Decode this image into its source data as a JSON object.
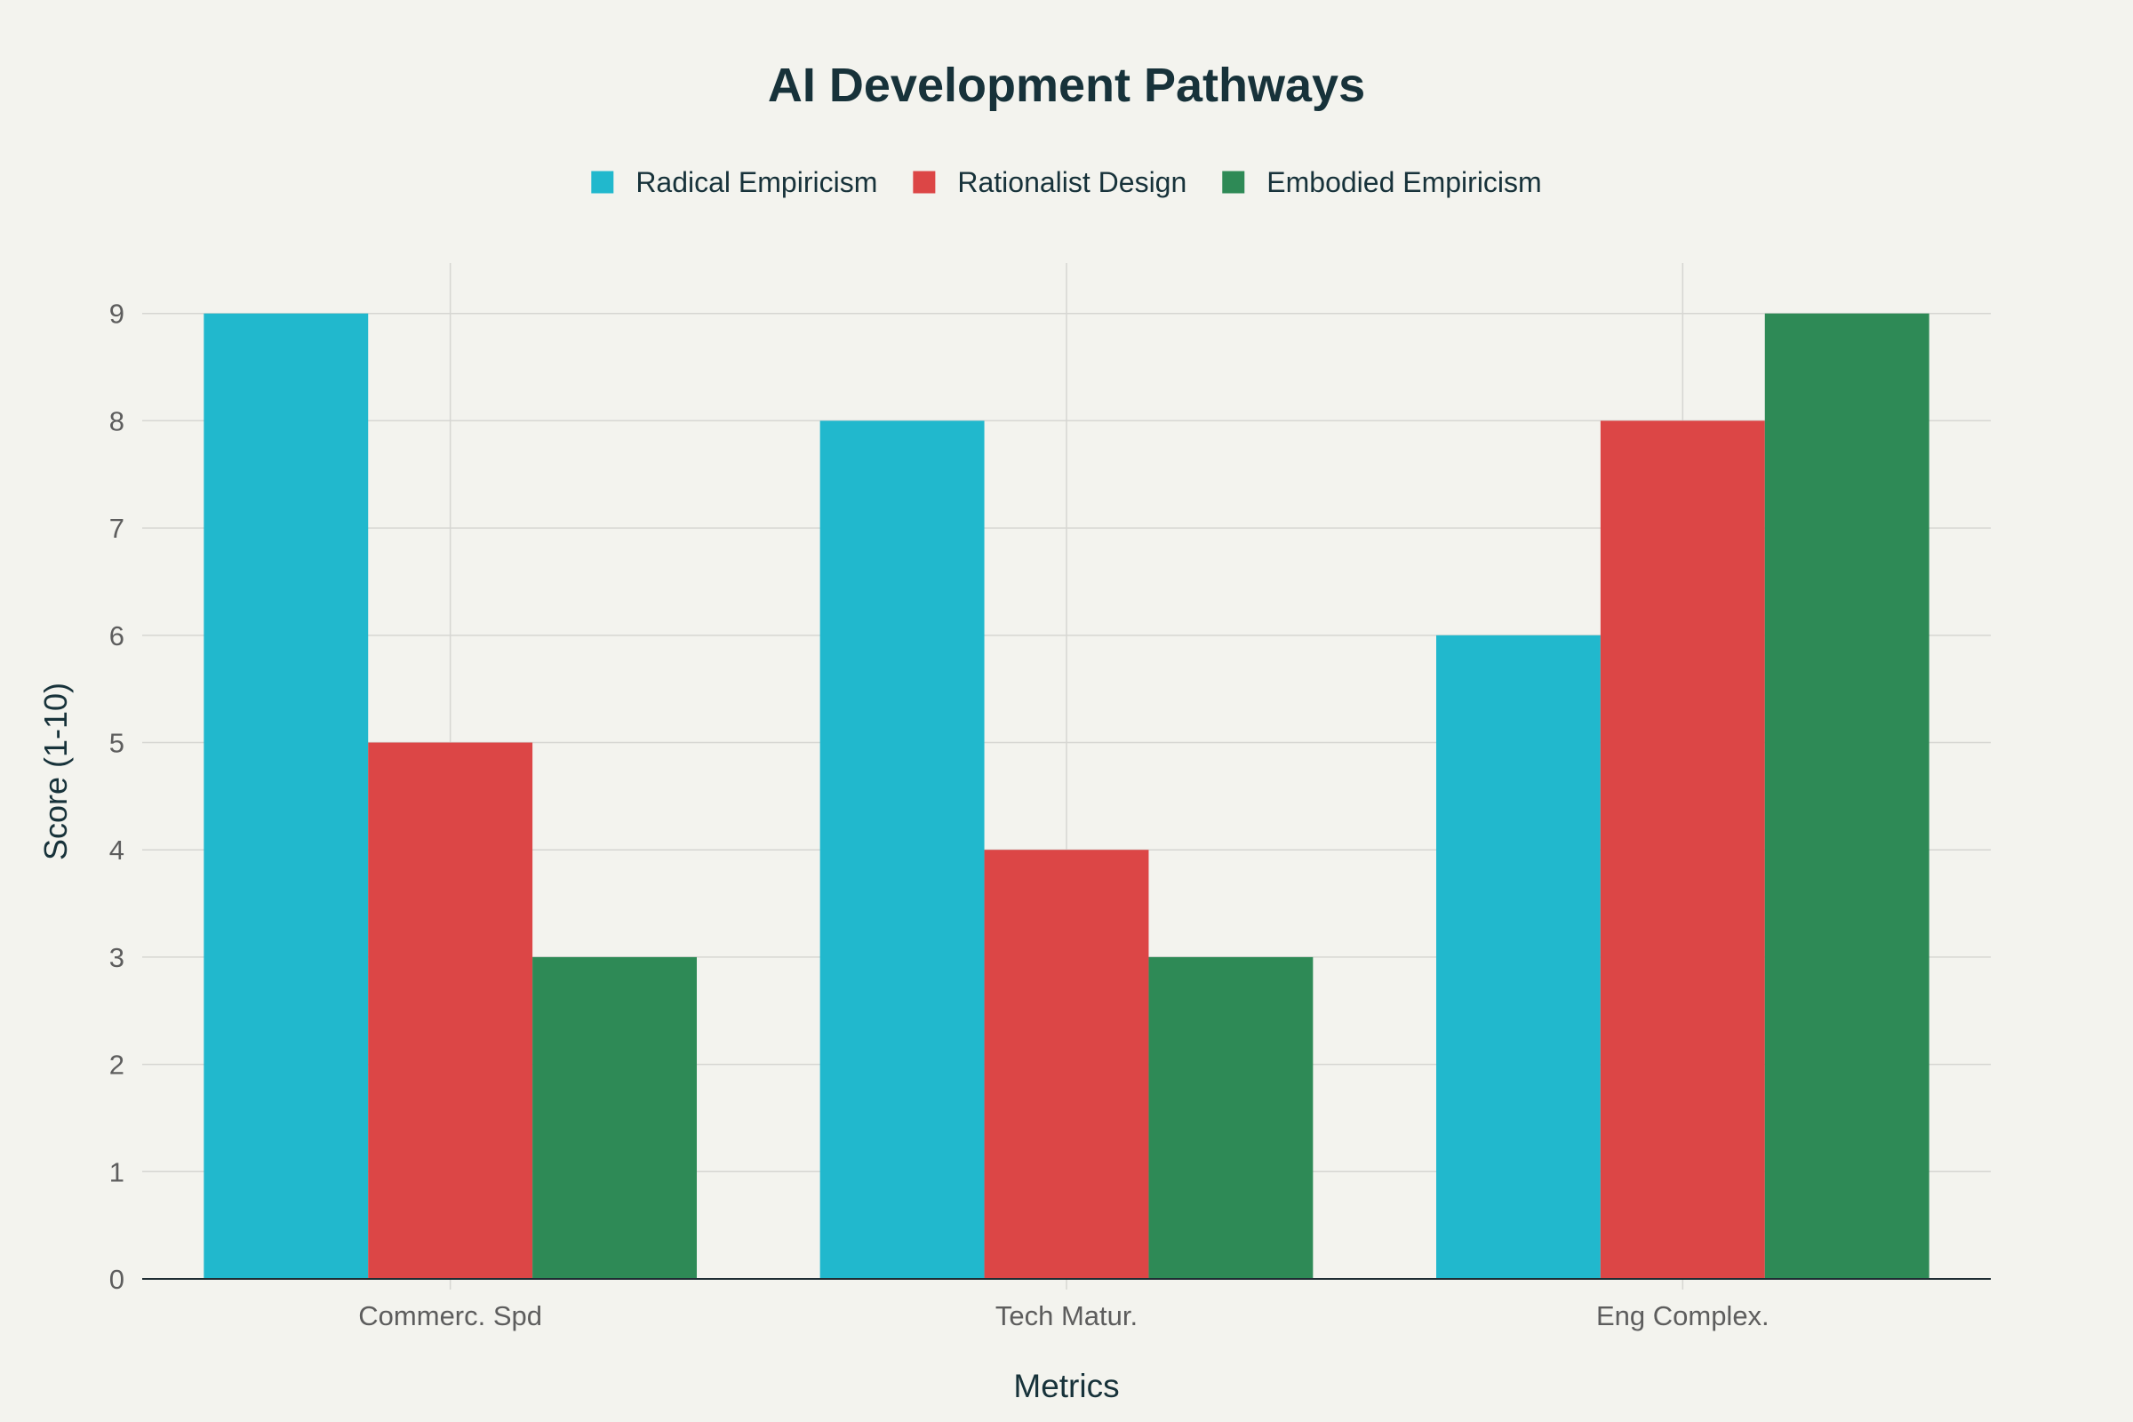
{
  "chart_data": {
    "type": "bar",
    "title": "AI Development Pathways",
    "xlabel": "Metrics",
    "ylabel": "Score (1-10)",
    "categories": [
      "Commerc. Spd",
      "Tech Matur.",
      "Eng Complex."
    ],
    "series": [
      {
        "name": "Radical Empiricism",
        "color": "#21b8cd",
        "values": [
          9,
          8,
          6
        ]
      },
      {
        "name": "Rationalist Design",
        "color": "#dc4646",
        "values": [
          5,
          4,
          8
        ]
      },
      {
        "name": "Embodied Empiricism",
        "color": "#2e8a56",
        "values": [
          3,
          3,
          9
        ]
      }
    ],
    "ylim": [
      0,
      9.47
    ],
    "yticks": [
      "0",
      "1",
      "2",
      "3",
      "4",
      "5",
      "6",
      "7",
      "8",
      "9"
    ],
    "grid": true,
    "legend_position": "top-center"
  },
  "colors": {
    "background": "#f3f3ee",
    "grid": "#d6d6d2",
    "axis": "#1f2d33",
    "title": "#17323a",
    "tick_text": "#5d5d5d"
  }
}
